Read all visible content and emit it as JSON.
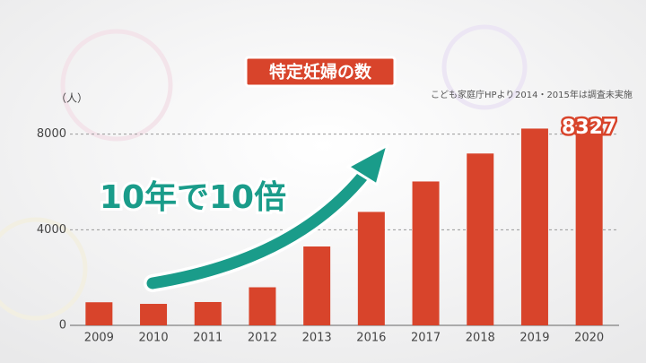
{
  "chart_data": {
    "type": "bar",
    "title": "特定妊婦の数",
    "y_label": "（人）",
    "annotations": [
      "10年で10倍",
      "こども家庭庁HPより",
      "2014・2015年は調査未実施"
    ],
    "categories": [
      "2009",
      "2010",
      "2011",
      "2012",
      "2013",
      "2016",
      "2017",
      "2018",
      "2019",
      "2020"
    ],
    "values": [
      966,
      899,
      976,
      1593,
      3300,
      4746,
      6020,
      7190,
      8233,
      8327
    ],
    "labeled_index": 9,
    "color": "#d8442b",
    "ylim": [
      0,
      9000
    ],
    "yticks": [
      0,
      4000,
      8000
    ],
    "grid": true
  }
}
